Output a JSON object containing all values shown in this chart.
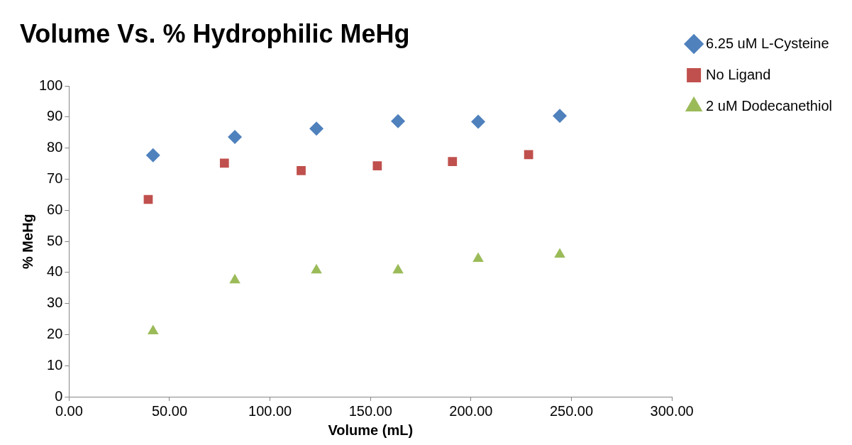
{
  "chart_data": {
    "type": "scatter",
    "title": "Volume Vs. % Hydrophilic MeHg",
    "xlabel": "Volume (mL)",
    "ylabel": "% MeHg",
    "xlim": [
      0,
      300
    ],
    "xticks": [
      {
        "value": 0,
        "label": "0.00"
      },
      {
        "value": 50,
        "label": "50.00"
      },
      {
        "value": 100,
        "label": "100.00"
      },
      {
        "value": 150,
        "label": "150.00"
      },
      {
        "value": 200,
        "label": "200.00"
      },
      {
        "value": 250,
        "label": "250.00"
      },
      {
        "value": 300,
        "label": "300.00"
      }
    ],
    "ylim": [
      0,
      100
    ],
    "yticks": [
      0,
      10,
      20,
      30,
      40,
      50,
      60,
      70,
      80,
      90,
      100
    ],
    "grid": false,
    "legend": "right",
    "series": [
      {
        "name": "6.25 uM L-Cysteine",
        "color": "#4f81bd",
        "marker": "diamond",
        "x": [
          41.8,
          82.5,
          123.1,
          163.7,
          203.6,
          244.2
        ],
        "values": [
          77.7,
          83.6,
          86.3,
          88.7,
          88.5,
          90.4
        ]
      },
      {
        "name": "No Ligand",
        "color": "#c0504d",
        "marker": "square",
        "x": [
          39.4,
          77.3,
          115.5,
          153.4,
          190.8,
          228.7
        ],
        "values": [
          63.5,
          75.2,
          72.8,
          74.3,
          75.7,
          77.9
        ]
      },
      {
        "name": "2 uM Dodecanethiol",
        "color": "#9bbb59",
        "marker": "triangle",
        "x": [
          41.8,
          82.5,
          123.1,
          163.7,
          203.6,
          244.2
        ],
        "values": [
          21.1,
          37.5,
          40.7,
          40.7,
          44.4,
          45.8
        ]
      }
    ]
  }
}
